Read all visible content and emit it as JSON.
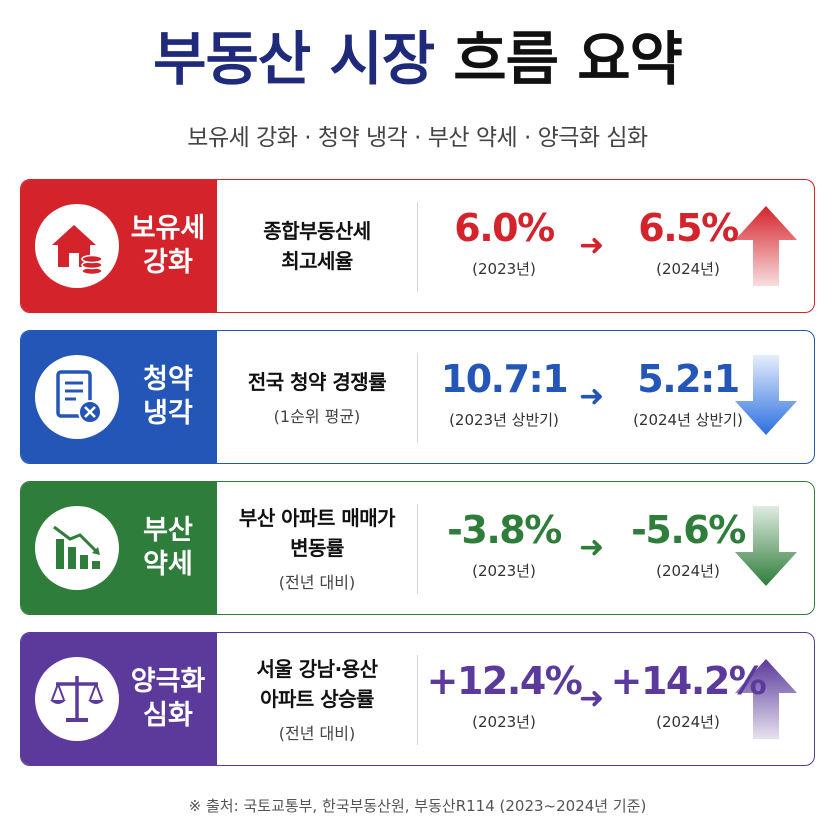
{
  "title": {
    "part1": "부동산 시장",
    "part2": "흐름 요약"
  },
  "subtitle": "보유세 강화 · 청약 냉각 · 부산 약세 · 양극화 심화",
  "cards": [
    {
      "label_line1": "보유세",
      "label_line2": "강화",
      "icon": "house-coins-icon",
      "color": "#d4232b",
      "metric_line1": "종합부동산세",
      "metric_line2": "최고세율",
      "metric_note": "",
      "from_value": "6.0%",
      "from_period": "(2023년)",
      "to_value": "6.5%",
      "to_period": "(2024년)",
      "trend": "up",
      "trend_icon": "arrow-up-icon"
    },
    {
      "label_line1": "청약",
      "label_line2": "냉각",
      "icon": "document-cancel-icon",
      "color": "#2456b8",
      "metric_line1": "전국 청약 경쟁률",
      "metric_line2": "",
      "metric_note": "(1순위 평균)",
      "from_value": "10.7:1",
      "from_period": "(2023년 상반기)",
      "to_value": "5.2:1",
      "to_period": "(2024년 상반기)",
      "trend": "down",
      "trend_icon": "arrow-down-icon"
    },
    {
      "label_line1": "부산",
      "label_line2": "약세",
      "icon": "declining-bar-chart-icon",
      "color": "#2e7d3a",
      "metric_line1": "부산 아파트 매매가",
      "metric_line2": "변동률",
      "metric_note": "(전년 대비)",
      "from_value": "-3.8%",
      "from_period": "(2023년)",
      "to_value": "-5.6%",
      "to_period": "(2024년)",
      "trend": "down",
      "trend_icon": "arrow-down-icon"
    },
    {
      "label_line1": "양극화",
      "label_line2": "심화",
      "icon": "scale-icon",
      "color": "#5b3a9b",
      "metric_line1": "서울 강남·용산",
      "metric_line2": "아파트 상승률",
      "metric_note": "(전년 대비)",
      "from_value": "+12.4%",
      "from_period": "(2023년)",
      "to_value": "+14.2%",
      "to_period": "(2024년)",
      "trend": "up",
      "trend_icon": "arrow-up-icon"
    }
  ],
  "footer": "※ 출처: 국토교통부, 한국부동산원, 부동산R114 (2023~2024년 기준)"
}
